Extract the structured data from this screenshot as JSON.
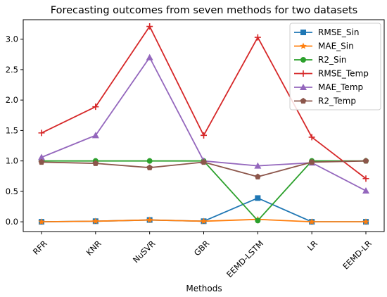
{
  "chart_data": {
    "type": "line",
    "title": "Forecasting outcomes from seven methods for two datasets",
    "xlabel": "Methods",
    "ylabel": "",
    "categories": [
      "RFR",
      "KNR",
      "NuSVR",
      "GBR",
      "EEMD-LSTM",
      "LR",
      "EEMD-LR"
    ],
    "yticks": [
      "0.0",
      "0.5",
      "1.0",
      "1.5",
      "2.0",
      "2.5",
      "3.0"
    ],
    "ylim": [
      -0.16,
      3.32
    ],
    "grid": false,
    "legend_position": "top-right",
    "series": [
      {
        "name": "RMSE_Sin",
        "color": "#1f77b4",
        "marker": "square",
        "values": [
          0.0,
          0.01,
          0.03,
          0.01,
          0.39,
          0.0,
          0.0
        ]
      },
      {
        "name": "MAE_Sin",
        "color": "#ff7f0e",
        "marker": "star",
        "values": [
          0.0,
          0.01,
          0.03,
          0.01,
          0.04,
          0.0,
          0.0
        ]
      },
      {
        "name": "R2_Sin",
        "color": "#2ca02c",
        "marker": "circle",
        "values": [
          1.0,
          1.0,
          1.0,
          1.0,
          0.02,
          1.0,
          1.0
        ]
      },
      {
        "name": "RMSE_Temp",
        "color": "#d62728",
        "marker": "plus",
        "values": [
          1.46,
          1.89,
          3.21,
          1.42,
          3.03,
          1.39,
          0.71
        ]
      },
      {
        "name": "MAE_Temp",
        "color": "#9467bd",
        "marker": "triangle",
        "values": [
          1.06,
          1.42,
          2.7,
          1.0,
          0.92,
          0.97,
          0.51
        ]
      },
      {
        "name": "R2_Temp",
        "color": "#8c564b",
        "marker": "pentagon",
        "values": [
          0.98,
          0.96,
          0.89,
          0.98,
          0.74,
          0.98,
          1.0
        ]
      }
    ]
  }
}
